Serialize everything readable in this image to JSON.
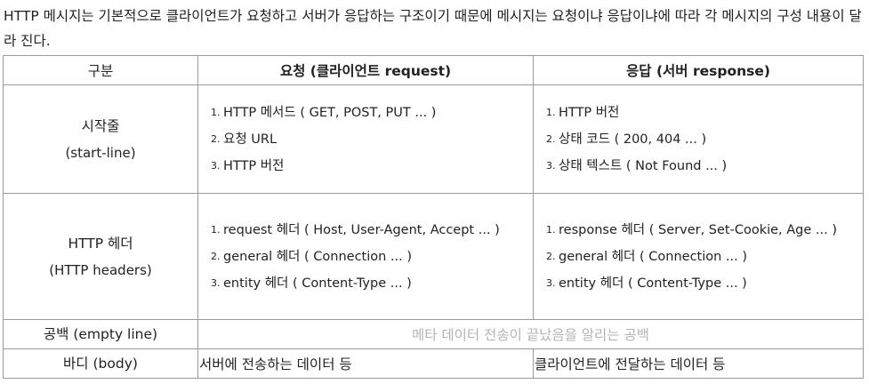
{
  "intro": "HTTP 메시지는 기본적으로 클라이언트가 요청하고 서버가 응답하는 구조이기 때문에 메시지는 요청이냐 응답이냐에 따라 각 메시지의 구성 내용이 달라 진다.",
  "table": {
    "headers": [
      "구분",
      "요청 (클라이언트 request)",
      "응답 (서버 response)"
    ],
    "start_line": {
      "label": "시작줄",
      "sublabel": "(start-line)",
      "request_items": [
        "HTTP 메서드 ( GET, POST, PUT ... )",
        "요청 URL",
        "HTTP 버전"
      ],
      "response_items": [
        "HTTP 버전",
        "상태 코드 ( 200, 404 ... )",
        "상태 텍스트 ( Not Found ... )"
      ]
    },
    "headers_row": {
      "label": "HTTP 헤더",
      "sublabel": "(HTTP headers)",
      "request_items": [
        "request 헤더 ( Host, User-Agent, Accept ... )",
        "general 헤더 ( Connection ... )",
        "entity 헤더 ( Content-Type ... )"
      ],
      "response_items": [
        "response 헤더 ( Server, Set-Cookie, Age ... )",
        "general 헤더 ( Connection ... )",
        "entity 헤더 ( Content-Type ... )"
      ]
    },
    "empty_line": {
      "label": "공백 (empty line)",
      "note": "메타 데이터 전송이 끝났음을 알리는 공백"
    },
    "body": {
      "label": "바디 (body)",
      "request": "서버에 전송하는 데이터 등",
      "response": "클라이언트에 전달하는 데이터 등"
    }
  }
}
